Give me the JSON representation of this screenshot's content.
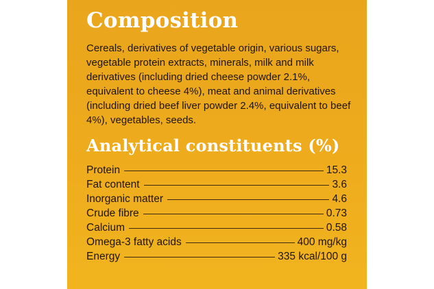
{
  "composition": {
    "title": "Composition",
    "text": "Cereals, derivatives of vegetable origin, various sugars, vegetable protein extracts, minerals, milk and milk derivatives (including dried cheese powder 2.1%, equivalent to cheese 4%), meat and animal derivatives (including dried beef liver powder 2.4%, equivalent to beef 4%), vegetables, seeds."
  },
  "analytical": {
    "title": "Analytical constituents (%)",
    "rows": [
      {
        "label": "Protein",
        "value": "15.3"
      },
      {
        "label": "Fat content",
        "value": "3.6"
      },
      {
        "label": "Inorganic matter",
        "value": "4.6"
      },
      {
        "label": "Crude fibre",
        "value": "0.73"
      },
      {
        "label": "Calcium",
        "value": "0.58"
      },
      {
        "label": "Omega-3 fatty acids",
        "value": "400 mg/kg"
      },
      {
        "label": "Energy",
        "value": "335 kcal/100 g"
      }
    ]
  },
  "colors": {
    "panel": "#eeaa1d",
    "heading": "#ffffff",
    "text": "#1f1405"
  }
}
